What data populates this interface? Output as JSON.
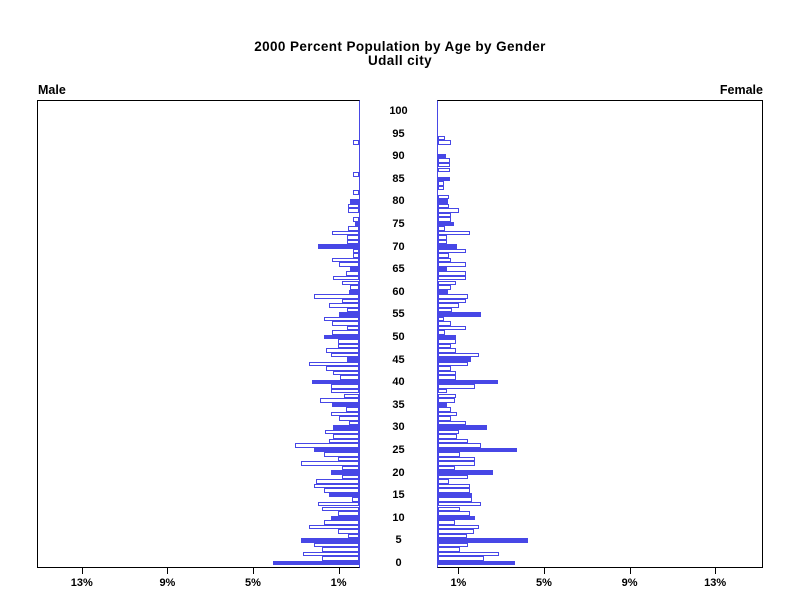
{
  "title": {
    "line1": "2000 Percent Population by Age by Gender",
    "line2": "Udall city"
  },
  "panels": {
    "male_label": "Male",
    "female_label": "Female"
  },
  "axes": {
    "age_tick_labels_top_to_bottom": [
      "100",
      "95",
      "90",
      "85",
      "80",
      "75",
      "70",
      "65",
      "60",
      "55",
      "50",
      "45",
      "40",
      "35",
      "30",
      "25",
      "20",
      "15",
      "10",
      "5",
      "0"
    ],
    "pct_tick_labels": [
      "1%",
      "5%",
      "9%",
      "13%"
    ],
    "pct_tick_values": [
      1,
      5,
      9,
      13
    ]
  },
  "colors": {
    "bar_blue": "#4747e6",
    "axis_black": "#000000",
    "bar_fill_white": "#ffffff"
  },
  "chart_data": {
    "type": "bar",
    "subtype": "population-pyramid",
    "title": "2000 Percent Population by Age by Gender",
    "subtitle": "Udall city",
    "x_unit": "percent of population",
    "x_axis_ticks_pct": [
      1,
      5,
      9,
      13
    ],
    "xlim_pct_each_side": [
      0,
      15.2
    ],
    "male_axis_direction": "right-to-left",
    "female_axis_direction": "left-to-right",
    "age_min": 0,
    "age_max": 100,
    "age_step": 1,
    "age_axis_labeled_every": 5,
    "solid_fill_rule": "bars for ages that are multiples of 5 are solid filled; other ages are outlined",
    "legend_position": "none",
    "grid": false,
    "series": [
      {
        "name": "Male",
        "values_pct_by_age_0_to_100": [
          4.0,
          1.75,
          2.6,
          1.75,
          2.1,
          2.7,
          0.5,
          1.0,
          2.35,
          1.65,
          1.3,
          1.0,
          1.75,
          1.9,
          0.35,
          1.4,
          1.65,
          2.1,
          2.0,
          0.8,
          1.3,
          0.8,
          2.7,
          1.0,
          1.65,
          2.1,
          3.0,
          1.4,
          1.2,
          1.6,
          1.2,
          0.45,
          0.95,
          1.3,
          0.6,
          1.25,
          1.8,
          0.7,
          1.3,
          1.3,
          2.2,
          0.9,
          1.2,
          1.55,
          2.35,
          0.55,
          1.3,
          1.55,
          1.0,
          1.0,
          1.65,
          1.25,
          0.55,
          1.25,
          1.65,
          0.95,
          0.55,
          1.4,
          0.8,
          2.1,
          0.45,
          0.4,
          0.8,
          1.2,
          0.6,
          0.4,
          0.95,
          1.25,
          0.3,
          0.3,
          1.9,
          0.55,
          0.55,
          1.25,
          0.5,
          0.2,
          0.3,
          0,
          0.5,
          0.5,
          0.4,
          0,
          0.3,
          0,
          0,
          0,
          0.3,
          0,
          0,
          0,
          0,
          0,
          0,
          0.3,
          0,
          0,
          0,
          0,
          0,
          0,
          0
        ]
      },
      {
        "name": "Female",
        "values_pct_by_age_0_to_100": [
          3.6,
          2.15,
          2.85,
          1.05,
          1.4,
          4.2,
          1.35,
          1.7,
          1.9,
          0.8,
          1.75,
          1.5,
          1.05,
          2.0,
          1.6,
          1.6,
          1.5,
          1.5,
          0.5,
          1.4,
          2.55,
          0.8,
          1.75,
          1.75,
          1.05,
          3.7,
          2.0,
          1.4,
          0.9,
          1.0,
          2.3,
          1.3,
          0.6,
          0.9,
          0.6,
          0.4,
          0.8,
          0.85,
          0.4,
          1.75,
          2.8,
          0.85,
          0.85,
          0.6,
          1.4,
          1.55,
          1.9,
          0.85,
          0.6,
          0.85,
          0.85,
          0.35,
          1.3,
          0.6,
          0.3,
          2.0,
          0.65,
          1.0,
          1.3,
          1.4,
          0.45,
          0.6,
          0.85,
          1.3,
          1.3,
          0.4,
          1.3,
          0.6,
          0.5,
          1.3,
          0.9,
          0.4,
          0.4,
          1.5,
          0.35,
          0.75,
          0.6,
          0.6,
          1.0,
          0.5,
          0.45,
          0.5,
          0,
          0.3,
          0.3,
          0.55,
          0,
          0.55,
          0.55,
          0.55,
          0.37,
          0,
          0,
          0.6,
          0.33,
          0,
          0,
          0,
          0,
          0,
          0,
          0
        ]
      }
    ]
  }
}
